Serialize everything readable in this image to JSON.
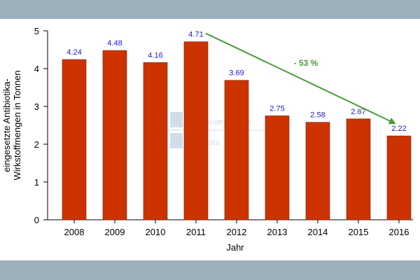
{
  "colors": {
    "bar": "#cc3300",
    "data_label": "#1a1acc",
    "arrow": "#4a9a3a",
    "band": "#9fb0bd",
    "watermark": "#c4d2e4"
  },
  "watermark": {
    "line1": "Poultry Health",
    "line2": "Data"
  },
  "chart_data": {
    "type": "bar",
    "title": "",
    "xlabel": "Jahr",
    "ylabel_lines": [
      "eingesetzte Antibiotika-",
      "Wirkstoffmengen in Tonnen"
    ],
    "categories": [
      "2008",
      "2009",
      "2010",
      "2011",
      "2012",
      "2013",
      "2014",
      "2015",
      "2016"
    ],
    "values": [
      4.24,
      4.48,
      4.16,
      4.71,
      3.69,
      2.75,
      2.58,
      2.67,
      2.22
    ],
    "value_labels": [
      "4.24",
      "4.48",
      "4.16",
      "4.71",
      "3.69",
      "2.75",
      "2.58",
      "2.67",
      "2.22"
    ],
    "ylim": [
      0,
      5
    ],
    "yticks": [
      0,
      1,
      2,
      3,
      4,
      5
    ],
    "grid": false,
    "legend": "none",
    "annotation": {
      "text": "- 53 %",
      "from_category": "2011",
      "to_category": "2016"
    }
  }
}
